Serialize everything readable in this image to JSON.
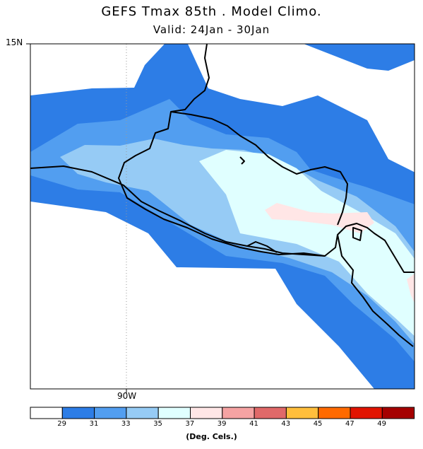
{
  "title": "GEFS Tmax 85th . Model Climo.",
  "subtitle": "Valid: 24Jan - 30Jan",
  "axes": {
    "lat_label": "15N",
    "lon_label": "90W"
  },
  "colorbar": {
    "colors": [
      "#ffffff",
      "#2d7de6",
      "#529ef0",
      "#96cbf5",
      "#e0ffff",
      "#ffe6e6",
      "#f5a3a3",
      "#e06969",
      "#ffbe3c",
      "#ff6a00",
      "#e11400",
      "#a50000"
    ],
    "ticks": [
      "29",
      "31",
      "33",
      "35",
      "37",
      "39",
      "41",
      "43",
      "45",
      "47",
      "49"
    ],
    "units": "(Deg. Cels.)"
  }
}
